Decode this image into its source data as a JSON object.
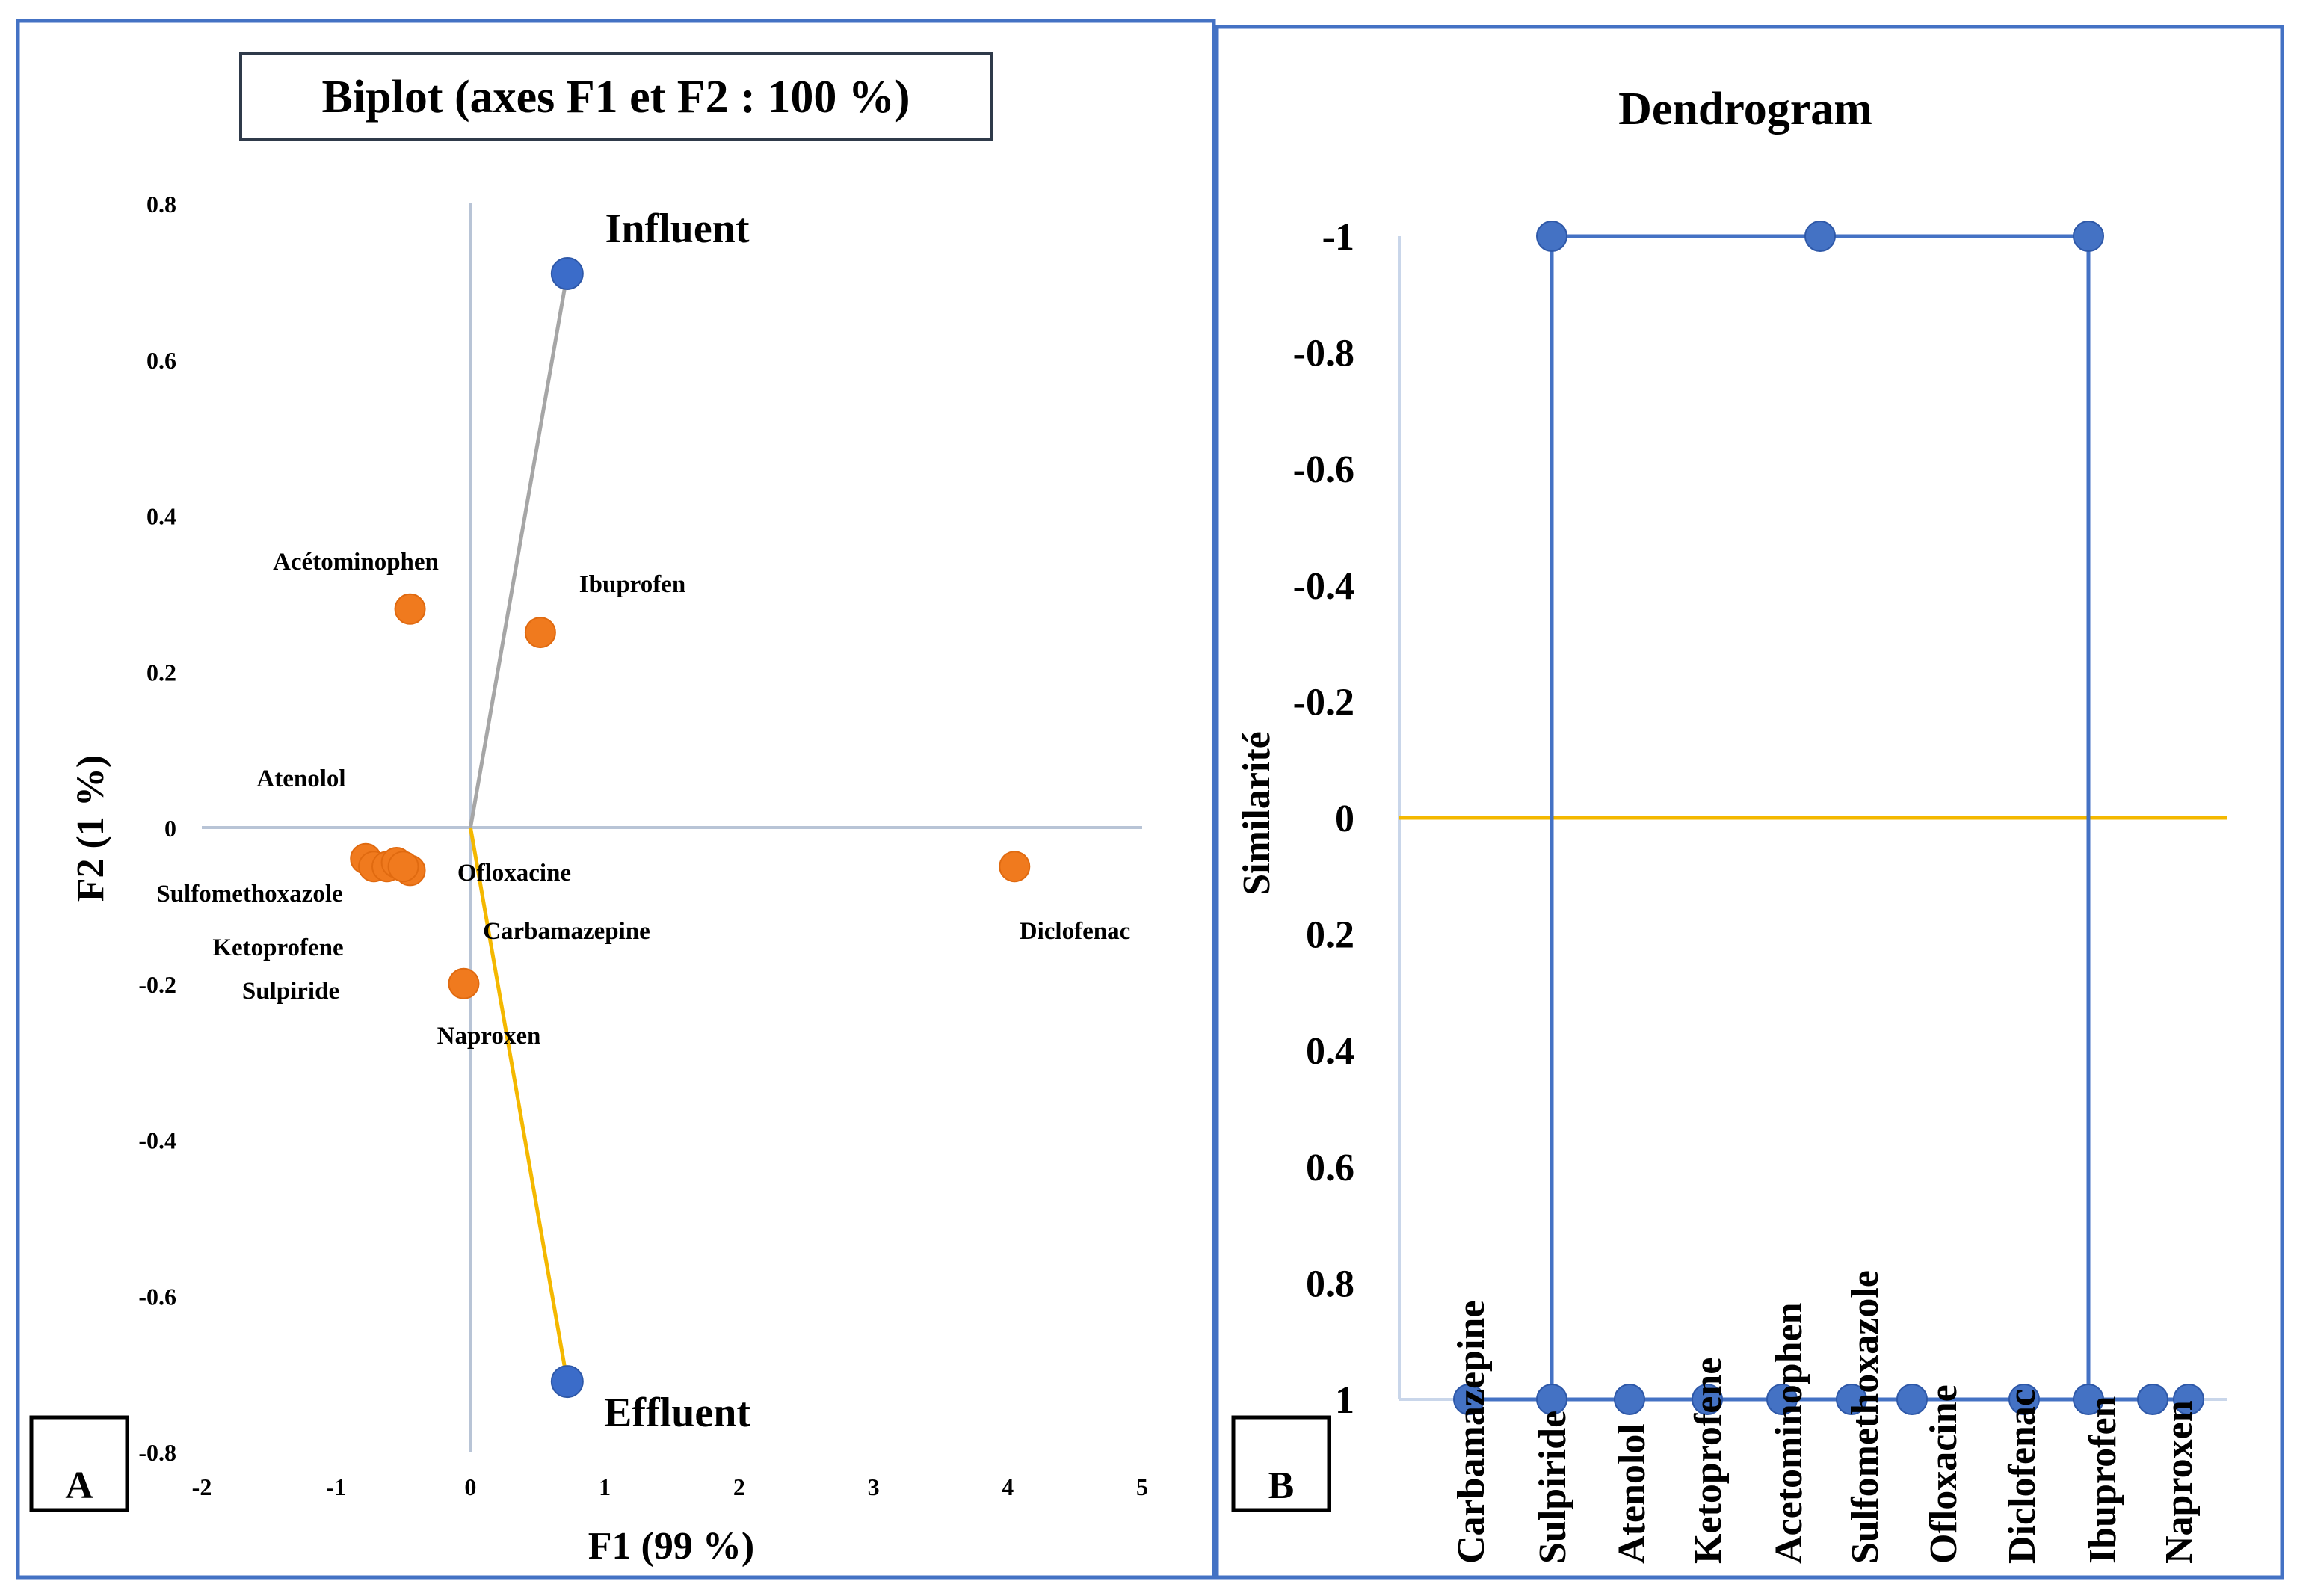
{
  "chart_data": [
    {
      "panel_label": "A",
      "type": "scatter",
      "title": "Biplot (axes F1 et F2 : 100 %)",
      "xlabel": "F1 (99 %)",
      "ylabel": "F2 (1 %)",
      "xlim": [
        -2,
        5
      ],
      "ylim": [
        -0.8,
        0.8
      ],
      "xticks": [
        -2,
        -1,
        0,
        1,
        2,
        3,
        4,
        5
      ],
      "yticks": [
        -0.8,
        -0.6,
        -0.4,
        -0.2,
        0,
        0.2,
        0.4,
        0.6,
        0.8
      ],
      "variables": [
        {
          "name": "Influent",
          "x": 0.72,
          "y": 0.71
        },
        {
          "name": "Effluent",
          "x": 0.72,
          "y": -0.71
        }
      ],
      "observations": [
        {
          "name": "Acétominophen",
          "x": -0.45,
          "y": 0.28
        },
        {
          "name": "Ibuprofen",
          "x": 0.52,
          "y": 0.25
        },
        {
          "name": "Atenolol",
          "x": -0.78,
          "y": -0.04
        },
        {
          "name": "Sulfomethoxazole",
          "x": -0.72,
          "y": -0.05
        },
        {
          "name": "Ketoprofene",
          "x": -0.62,
          "y": -0.05
        },
        {
          "name": "Sulpiride",
          "x": -0.55,
          "y": -0.045
        },
        {
          "name": "Ofloxacine",
          "x": -0.45,
          "y": -0.055
        },
        {
          "name": "Carbamazepine",
          "x": -0.5,
          "y": -0.05
        },
        {
          "name": "Naproxen",
          "x": -0.05,
          "y": -0.2
        },
        {
          "name": "Diclofenac",
          "x": 4.05,
          "y": -0.05
        }
      ]
    },
    {
      "panel_label": "B",
      "type": "dendrogram",
      "title": "Dendrogram",
      "ylabel": "Similarité",
      "ylim": [
        1,
        -1
      ],
      "yticks": [
        -1,
        -0.8,
        -0.6,
        -0.4,
        -0.2,
        0,
        0.2,
        0.4,
        0.6,
        0.8,
        1
      ],
      "ytick_labels": [
        "-1",
        "-0.8",
        "-0.6",
        "-0.4",
        "-0.2",
        "0",
        "0.2",
        "0.4",
        "0.6",
        "0.8",
        "1"
      ],
      "leaves": [
        "Carbamazepine",
        "Sulpiride",
        "Atenolol",
        "Ketoprofene",
        "Acetominophen",
        "Sulfomethoxazole",
        "Ofloxacine",
        "Diclofenac",
        "Ibuprofen",
        "Naproxen"
      ],
      "clusters": [
        {
          "leaves": [
            "Carbamazepine",
            "Sulpiride",
            "Atenolol",
            "Ketoprofene",
            "Acetominophen",
            "Sulfomethoxazole",
            "Ofloxacine",
            "Naproxen"
          ],
          "similarity": 1
        },
        {
          "leaves": [
            "Diclofenac",
            "Ibuprofen"
          ],
          "similarity": 1
        },
        {
          "merge": "all",
          "similarity": -1
        }
      ],
      "truncation_line": 0
    }
  ],
  "colors": {
    "variable_point": "#3B6CC9",
    "observation_point": "#F07A1E",
    "influent_vector": "#A6A6A6",
    "effluent_vector": "#F4B800",
    "axis_line": "#B8C4D6",
    "dendrogram_line": "#4472C4",
    "truncation_line": "#F4B800",
    "panel_border": "#4472C4"
  }
}
